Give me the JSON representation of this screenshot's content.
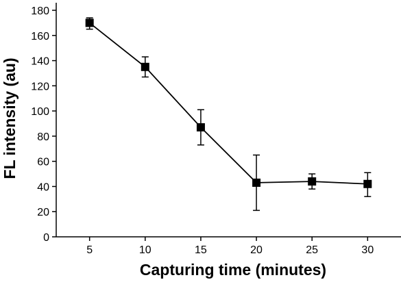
{
  "chart_data": {
    "type": "line",
    "xlabel": "Capturing time (minutes)",
    "ylabel": "FL intensity (au)",
    "xlim": [
      2,
      33
    ],
    "ylim": [
      0,
      186
    ],
    "x_ticks": [
      5,
      10,
      15,
      20,
      25,
      30
    ],
    "y_ticks": [
      0,
      20,
      40,
      60,
      80,
      100,
      120,
      140,
      160,
      180
    ],
    "grid": false,
    "legend": "none",
    "color": "#000000",
    "marker": "square",
    "series": [
      {
        "x": [
          5,
          10,
          15,
          20,
          25,
          30
        ],
        "y": [
          170,
          135,
          87,
          43,
          44,
          42
        ],
        "error_lower": [
          165,
          127,
          73,
          21,
          38,
          32
        ],
        "error_upper": [
          174,
          143,
          101,
          65,
          50,
          51
        ]
      }
    ]
  }
}
